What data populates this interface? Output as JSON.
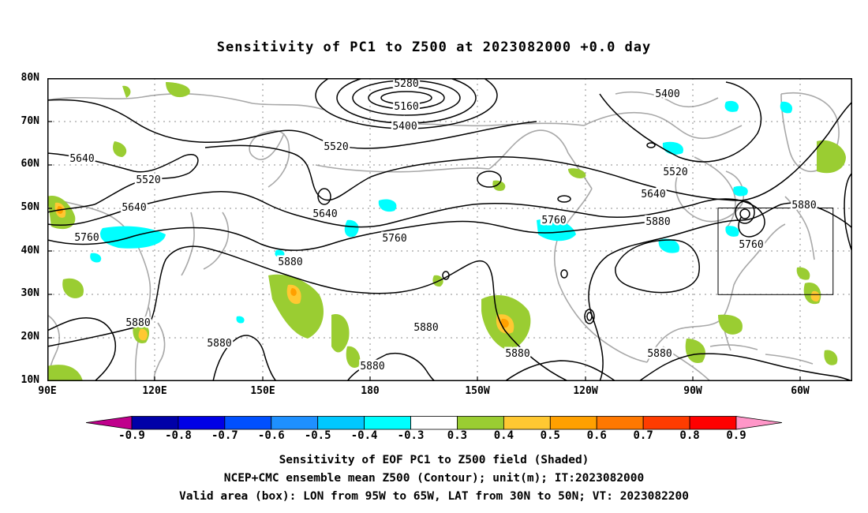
{
  "title": "Sensitivity of PC1 to Z500 at 2023082000 +0.0 day",
  "lat_labels": [
    "80N",
    "70N",
    "60N",
    "50N",
    "40N",
    "30N",
    "20N",
    "10N"
  ],
  "lon_labels": [
    "90E",
    "120E",
    "150E",
    "180",
    "150W",
    "120W",
    "90W",
    "60W"
  ],
  "contour_labels": [
    "5280",
    "5160",
    "5400",
    "5520",
    "5400",
    "5640",
    "5520",
    "5640",
    "5760",
    "5640",
    "5760",
    "5520",
    "5640",
    "5760",
    "5880",
    "5880",
    "5760",
    "5880",
    "5880",
    "5880",
    "5880",
    "5880",
    "5880",
    "5880",
    "5880"
  ],
  "valid_box": {
    "lon_w": -95,
    "lon_e": -65,
    "lat_s": 30,
    "lat_n": 50
  },
  "colorbar": {
    "labels": [
      "-0.9",
      "-0.8",
      "-0.7",
      "-0.6",
      "-0.5",
      "-0.4",
      "-0.3",
      "0.3",
      "0.4",
      "0.5",
      "0.6",
      "0.7",
      "0.8",
      "0.9"
    ],
    "colors": [
      "#c0008c",
      "#0000a8",
      "#0000e6",
      "#0050ff",
      "#1e90ff",
      "#00c8ff",
      "#00ffff",
      "#ffffff",
      "#9acd32",
      "#ffc832",
      "#ffa000",
      "#ff7800",
      "#ff3c00",
      "#ff0000",
      "#ff96c8"
    ]
  },
  "captions": [
    "Sensitivity of EOF PC1 to Z500 field (Shaded)",
    "NCEP+CMC ensemble mean Z500 (Contour); unit(m); IT:2023082000",
    "Valid area (box): LON from 95W to 65W, LAT from 30N to 50N; VT: 2023082200"
  ]
}
